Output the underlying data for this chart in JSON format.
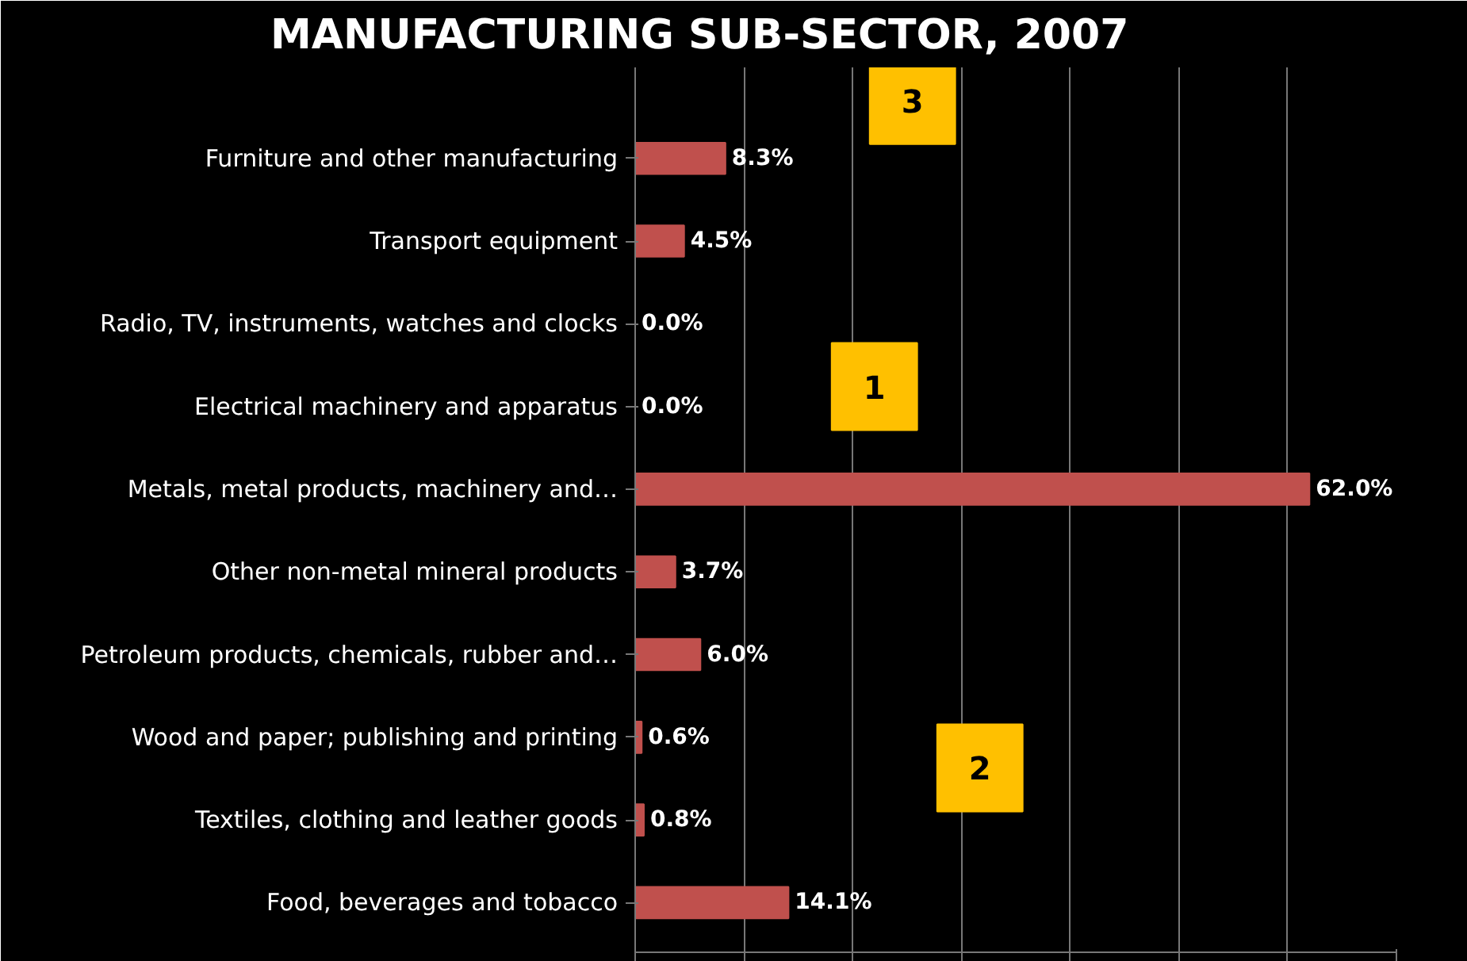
{
  "chart_data": {
    "type": "bar",
    "orientation": "horizontal",
    "title": "MANUFACTURING SUB-SECTOR, 2007",
    "categories": [
      "Furniture and other manufacturing",
      "Transport equipment",
      "Radio, TV, instruments, watches and clocks",
      "Electrical machinery and apparatus",
      "Metals, metal products, machinery and…",
      "Other non-metal mineral products",
      "Petroleum products, chemicals, rubber and…",
      "Wood and paper; publishing and printing",
      "Textiles, clothing and leather goods",
      "Food, beverages and tobacco"
    ],
    "values": [
      8.3,
      4.5,
      0.0,
      0.0,
      62.0,
      3.7,
      6.0,
      0.6,
      0.8,
      14.1
    ],
    "value_labels": [
      "8.3%",
      "4.5%",
      "0.0%",
      "0.0%",
      "62.0%",
      "3.7%",
      "6.0%",
      "0.6%",
      "0.8%",
      "14.1%"
    ],
    "color": "#c0504d",
    "xlim": [
      0,
      70
    ],
    "xticks": [
      {
        "value": 0,
        "label": null
      },
      {
        "value": 10,
        "label": null
      },
      {
        "value": 20,
        "label": null
      },
      {
        "value": 30,
        "label": null
      },
      {
        "value": 40,
        "label": null
      },
      {
        "value": 50,
        "label": null
      },
      {
        "value": 60,
        "label": null
      },
      {
        "value": 70,
        "label": null
      }
    ],
    "grid": "x",
    "annotations": [
      "3",
      "1",
      "2"
    ]
  }
}
